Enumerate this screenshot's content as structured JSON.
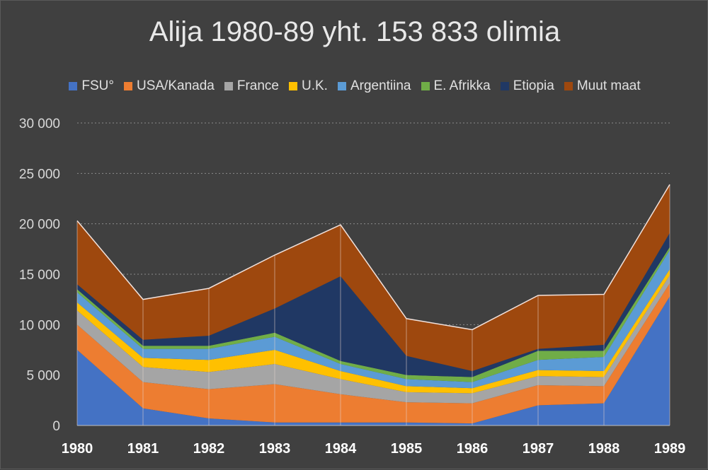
{
  "chart_data": {
    "type": "area",
    "stacked": true,
    "title": "Alija 1980-89 yht. 153 833 olimia",
    "xlabel": "",
    "ylabel": "",
    "categories": [
      "1980",
      "1981",
      "1982",
      "1983",
      "1984",
      "1985",
      "1986",
      "1987",
      "1988",
      "1989"
    ],
    "ylim": [
      0,
      30000
    ],
    "yticks": [
      0,
      5000,
      10000,
      15000,
      20000,
      25000,
      30000
    ],
    "ytick_labels": [
      "0",
      "5 000",
      "10 000",
      "15 000",
      "20 000",
      "25 000",
      "30 000"
    ],
    "grid": true,
    "legend_position": "top",
    "series": [
      {
        "name": "FSU°",
        "color": "#4472c4",
        "values": [
          7500,
          1700,
          700,
          300,
          300,
          300,
          200,
          2000,
          2200,
          12800
        ]
      },
      {
        "name": "USA/Kanada",
        "color": "#ed7d31",
        "values": [
          2500,
          2600,
          2900,
          3800,
          2800,
          2000,
          2000,
          2000,
          1700,
          1300
        ]
      },
      {
        "name": "France",
        "color": "#a5a5a5",
        "values": [
          1400,
          1500,
          1700,
          2000,
          1500,
          1000,
          1000,
          900,
          900,
          800
        ]
      },
      {
        "name": "U.K.",
        "color": "#ffc000",
        "values": [
          800,
          900,
          1200,
          1400,
          800,
          600,
          500,
          600,
          600,
          600
        ]
      },
      {
        "name": "Argentiina",
        "color": "#5b9bd5",
        "values": [
          1000,
          900,
          1100,
          1300,
          700,
          700,
          600,
          1000,
          1400,
          1900
        ]
      },
      {
        "name": "E. Afrikka",
        "color": "#70ad47",
        "values": [
          300,
          300,
          300,
          400,
          300,
          400,
          500,
          900,
          600,
          300
        ]
      },
      {
        "name": "Etiopia",
        "color": "#203864",
        "values": [
          500,
          600,
          1000,
          2400,
          8400,
          1900,
          600,
          200,
          600,
          1400
        ]
      },
      {
        "name": "Muut maat",
        "color": "#9e480e",
        "values": [
          6300,
          4000,
          4700,
          5300,
          5100,
          3700,
          4100,
          5300,
          5000,
          4800
        ]
      }
    ]
  }
}
